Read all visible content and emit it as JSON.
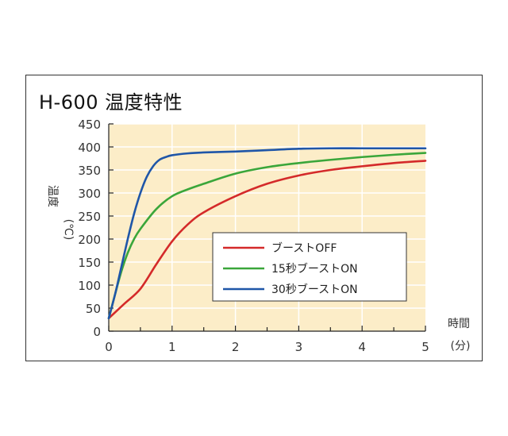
{
  "chart_data": {
    "type": "line",
    "title": "H-600 温度特性",
    "ylabel": [
      "温度",
      "(℃)"
    ],
    "xlabel": [
      "時間",
      "(分)"
    ],
    "xlim": [
      0,
      5
    ],
    "ylim": [
      0,
      450
    ],
    "xticks": [
      0,
      1,
      2,
      3,
      4,
      5
    ],
    "yticks": [
      0,
      50,
      100,
      150,
      200,
      250,
      300,
      350,
      400,
      450
    ],
    "grid": true,
    "legend_position": "lower-right",
    "colors": {
      "plot_background": "#fcedc8",
      "grid": "#ffffff"
    },
    "series": [
      {
        "name": "ブーストOFF",
        "color": "#d42a2a",
        "x": [
          0,
          0.25,
          0.5,
          0.75,
          1.0,
          1.25,
          1.5,
          2.0,
          2.5,
          3.0,
          3.5,
          4.0,
          4.5,
          5.0
        ],
        "y": [
          28,
          60,
          92,
          145,
          195,
          232,
          258,
          293,
          320,
          338,
          350,
          358,
          365,
          370
        ]
      },
      {
        "name": "15秒ブーストON",
        "color": "#3aa63a",
        "x": [
          0,
          0.1,
          0.2,
          0.3,
          0.4,
          0.5,
          0.75,
          1.0,
          1.25,
          1.5,
          2.0,
          2.5,
          3.0,
          3.5,
          4.0,
          4.5,
          5.0
        ],
        "y": [
          28,
          80,
          130,
          170,
          200,
          222,
          265,
          293,
          308,
          320,
          342,
          356,
          365,
          372,
          378,
          383,
          387
        ]
      },
      {
        "name": "30秒ブーストON",
        "color": "#1f56a8",
        "x": [
          0,
          0.1,
          0.2,
          0.3,
          0.4,
          0.5,
          0.6,
          0.7,
          0.8,
          0.9,
          1.0,
          1.25,
          1.5,
          2.0,
          2.5,
          3.0,
          3.5,
          4.0,
          4.5,
          5.0
        ],
        "y": [
          28,
          80,
          140,
          200,
          255,
          300,
          335,
          358,
          372,
          378,
          382,
          386,
          388,
          390,
          393,
          396,
          397,
          397,
          397,
          397
        ]
      }
    ]
  }
}
